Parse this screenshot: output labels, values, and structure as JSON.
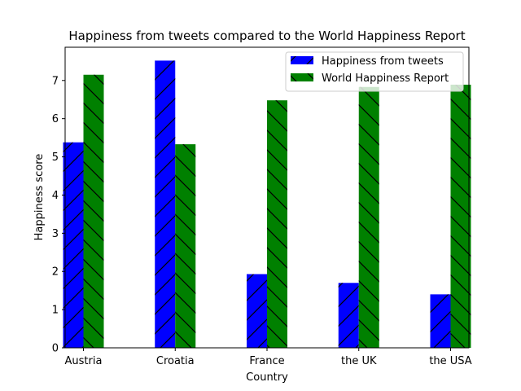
{
  "chart_data": {
    "type": "bar",
    "title": "Happiness from tweets compared to the World Happiness Report",
    "xlabel": "Country",
    "ylabel": "Happiness score",
    "categories": [
      "Austria",
      "Croatia",
      "France",
      "the UK",
      "the USA"
    ],
    "ylim": [
      0,
      7.87
    ],
    "yticks": [
      0,
      1,
      2,
      3,
      4,
      5,
      6,
      7
    ],
    "legend_position": "top-right",
    "series": [
      {
        "name": "Happiness from tweets",
        "color": "#0000ff",
        "hatch": "forward-diagonal",
        "values": [
          5.38,
          7.52,
          1.93,
          1.7,
          1.4
        ]
      },
      {
        "name": "World Happiness Report",
        "color": "#008000",
        "hatch": "back-diagonal",
        "values": [
          7.15,
          5.33,
          6.48,
          6.83,
          6.89
        ]
      }
    ]
  }
}
